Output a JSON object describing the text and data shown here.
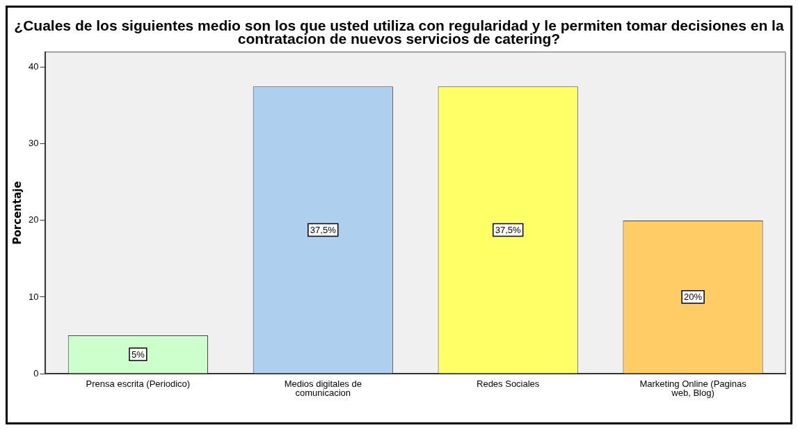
{
  "chart_data": {
    "type": "bar",
    "title": "¿Cuales de los siguientes medio son los que usted utiliza con regularidad y le permiten tomar decisiones en la contratacion de nuevos servicios de catering?",
    "ylabel": "Porcentaje",
    "categories": [
      "Prensa escrita (Periodico)",
      "Medios digitales de comunicacion",
      "Redes Sociales",
      "Marketing Online (Paginas web, Blog)"
    ],
    "values": [
      5,
      37.5,
      37.5,
      20
    ],
    "value_labels": [
      "5%",
      "37,5%",
      "37,5%",
      "20%"
    ],
    "colors": [
      "#ccffcc",
      "#aecfee",
      "#ffff66",
      "#ffcc66"
    ],
    "ylim": [
      0,
      42
    ],
    "yticks": [
      0,
      10,
      20,
      30,
      40
    ],
    "grid": false,
    "legend": false
  }
}
